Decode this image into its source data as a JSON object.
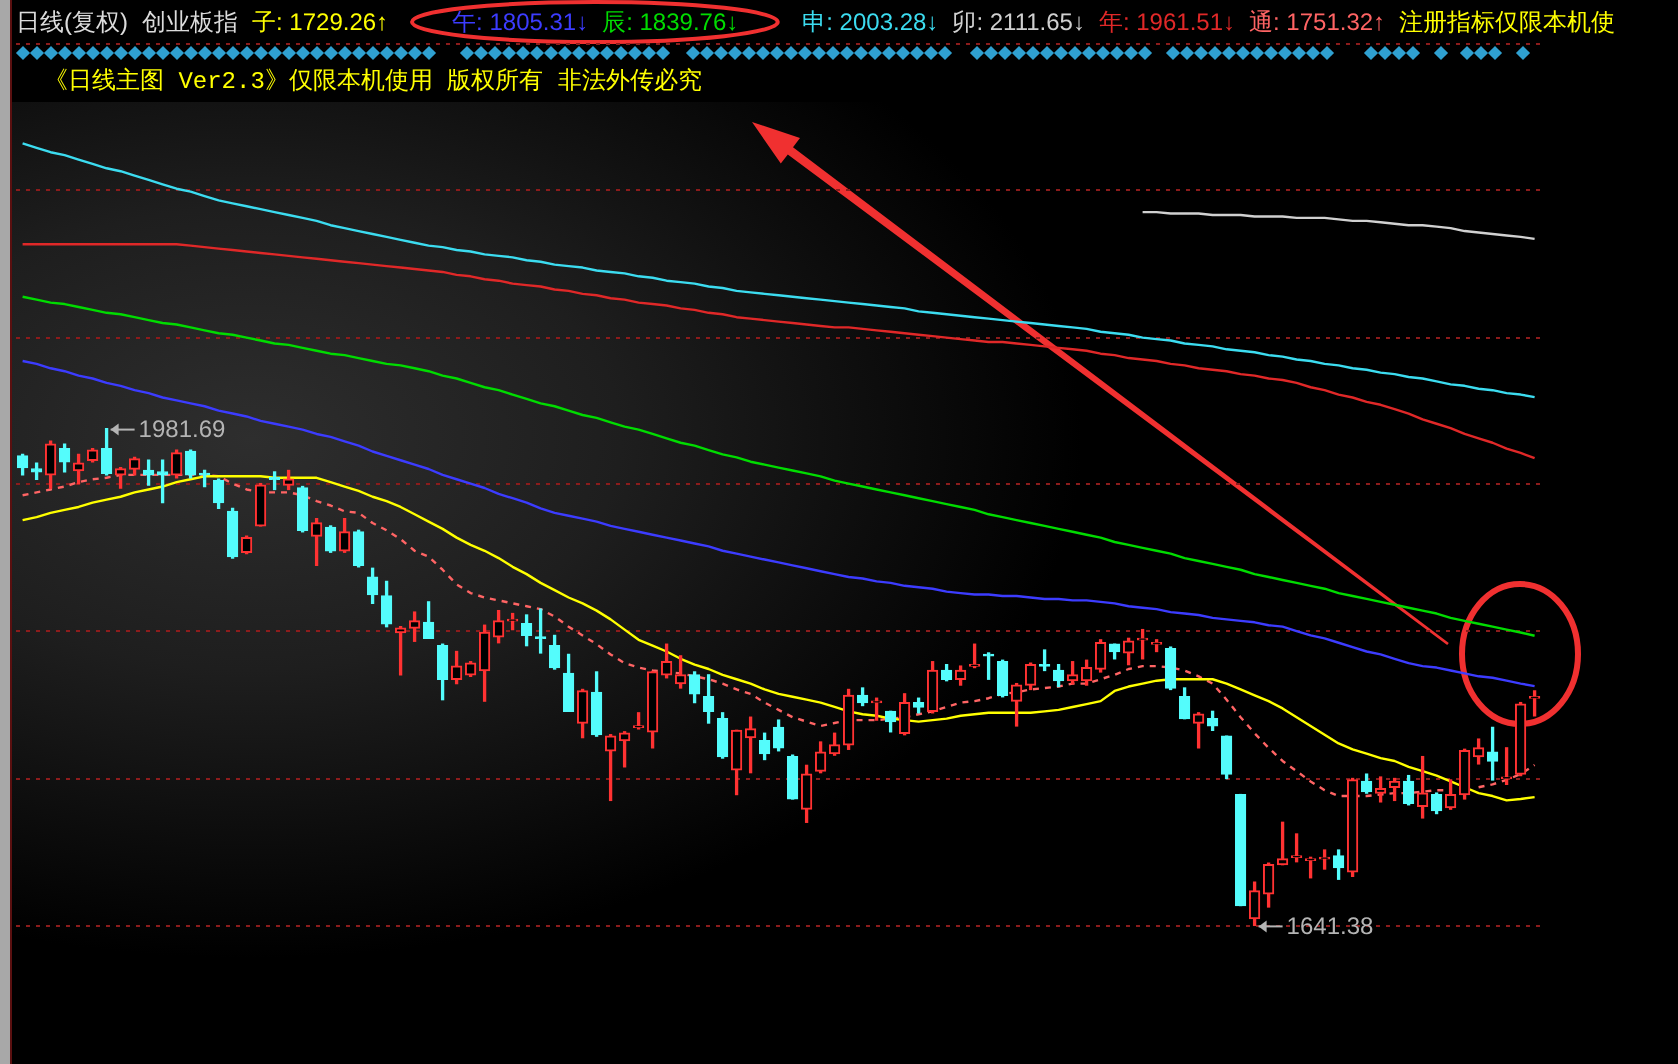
{
  "chart_data": {
    "type": "candlestick",
    "title": "日线(复权)",
    "subtitle": "创业板指",
    "categories": [
      null,
      null,
      null,
      null,
      null,
      null,
      null,
      null,
      null,
      null,
      null,
      null,
      null,
      null,
      null,
      null,
      null,
      null,
      null,
      null,
      null,
      null,
      null,
      null,
      null,
      null,
      null,
      null,
      null,
      null,
      null,
      null,
      null,
      null,
      null,
      null,
      null,
      null,
      null,
      null,
      null,
      null,
      null,
      null,
      null,
      null,
      null,
      null,
      null,
      null,
      null,
      null,
      null,
      null,
      null,
      null,
      null,
      null,
      null,
      null,
      null,
      null,
      null,
      null,
      null,
      null,
      null,
      null,
      null,
      null,
      null,
      null,
      null,
      null,
      null,
      null,
      null,
      null,
      null,
      null,
      null,
      null,
      null,
      null,
      null,
      null,
      null,
      null,
      null,
      null,
      null,
      null,
      null,
      null,
      null,
      null,
      null,
      null,
      null,
      null,
      null,
      null,
      null,
      null,
      null,
      null,
      null,
      null,
      null
    ],
    "ohlc": [
      [
        1963,
        1964,
        1950,
        1955
      ],
      [
        1954,
        1958,
        1947,
        1952
      ],
      [
        1950,
        1973,
        1941,
        1971
      ],
      [
        1968,
        1971,
        1952,
        1959
      ],
      [
        1953,
        1964,
        1944,
        1958
      ],
      [
        1960,
        1968,
        1959,
        1967
      ],
      [
        1968,
        1981.69,
        1950,
        1951
      ],
      [
        1950,
        1955,
        1941,
        1954
      ],
      [
        1954,
        1962,
        1950,
        1961
      ],
      [
        1953,
        1960,
        1943,
        1950
      ],
      [
        1952,
        1960,
        1931,
        1950
      ],
      [
        1950,
        1967,
        1948,
        1965
      ],
      [
        1966,
        1967,
        1948,
        1950
      ],
      [
        1951,
        1953,
        1942,
        1950
      ],
      [
        1946,
        1947,
        1927,
        1931
      ],
      [
        1925,
        1927,
        1893,
        1894
      ],
      [
        1897,
        1908,
        1896,
        1907
      ],
      [
        1915,
        1944,
        1915,
        1943
      ],
      [
        1948,
        1952,
        1940,
        1947
      ],
      [
        1943,
        1953,
        1940,
        1947
      ],
      [
        1941,
        1942,
        1911,
        1912
      ],
      [
        1908,
        1920,
        1888,
        1917
      ],
      [
        1914,
        1915,
        1897,
        1898
      ],
      [
        1898,
        1920,
        1897,
        1911
      ],
      [
        1911,
        1912,
        1887,
        1888
      ],
      [
        1880,
        1886,
        1862,
        1868
      ],
      [
        1867,
        1877,
        1846,
        1848
      ],
      [
        1842,
        1846,
        1813,
        1845
      ],
      [
        1845,
        1856,
        1836,
        1850
      ],
      [
        1849,
        1863,
        1838,
        1838
      ],
      [
        1833,
        1834,
        1796,
        1810
      ],
      [
        1810,
        1829,
        1807,
        1819
      ],
      [
        1813,
        1822,
        1812,
        1821
      ],
      [
        1816,
        1847,
        1795,
        1842
      ],
      [
        1839,
        1857,
        1835,
        1850
      ],
      [
        1850,
        1855,
        1844,
        1851
      ],
      [
        1848,
        1854,
        1833,
        1840
      ],
      [
        1839,
        1858,
        1828,
        1838
      ],
      [
        1833,
        1840,
        1817,
        1818
      ],
      [
        1814,
        1827,
        1788,
        1788
      ],
      [
        1780,
        1803,
        1770,
        1802
      ],
      [
        1801,
        1815,
        1771,
        1772
      ],
      [
        1761,
        1772,
        1727,
        1771
      ],
      [
        1768,
        1774,
        1750,
        1773
      ],
      [
        1777,
        1787,
        1776,
        1778
      ],
      [
        1774,
        1815,
        1763,
        1815
      ],
      [
        1813,
        1834,
        1811,
        1822
      ],
      [
        1807,
        1826,
        1804,
        1813
      ],
      [
        1813,
        1815,
        1794,
        1800
      ],
      [
        1798,
        1813,
        1780,
        1788
      ],
      [
        1783,
        1787,
        1756,
        1757
      ],
      [
        1748,
        1775,
        1731,
        1775
      ],
      [
        1770,
        1784,
        1746,
        1776
      ],
      [
        1768,
        1773,
        1755,
        1759
      ],
      [
        1777,
        1782,
        1761,
        1763
      ],
      [
        1757,
        1758,
        1728,
        1728
      ],
      [
        1721,
        1751,
        1712,
        1745
      ],
      [
        1747,
        1767,
        1746,
        1760
      ],
      [
        1759,
        1773,
        1758,
        1765
      ],
      [
        1765,
        1803,
        1762,
        1799
      ],
      [
        1799,
        1804,
        1792,
        1794
      ],
      [
        1794,
        1797,
        1782,
        1795
      ],
      [
        1788,
        1788,
        1774,
        1781
      ],
      [
        1773,
        1800,
        1772,
        1794
      ],
      [
        1794,
        1797,
        1787,
        1791
      ],
      [
        1788,
        1822,
        1787,
        1816
      ],
      [
        1816,
        1820,
        1809,
        1810
      ],
      [
        1810,
        1819,
        1806,
        1816
      ],
      [
        1819,
        1834,
        1818,
        1820
      ],
      [
        1827,
        1828,
        1810,
        1826
      ],
      [
        1822,
        1823,
        1798,
        1799
      ],
      [
        1795,
        1807,
        1778,
        1806
      ],
      [
        1806,
        1821,
        1803,
        1820
      ],
      [
        1820,
        1830,
        1816,
        1819
      ],
      [
        1816,
        1820,
        1805,
        1809
      ],
      [
        1809,
        1822,
        1807,
        1813
      ],
      [
        1809,
        1823,
        1806,
        1818
      ],
      [
        1817,
        1837,
        1815,
        1835
      ],
      [
        1834,
        1834,
        1824,
        1829
      ],
      [
        1828,
        1838,
        1820,
        1836
      ],
      [
        1837,
        1844,
        1824,
        1838
      ],
      [
        1834,
        1837,
        1829,
        1835
      ],
      [
        1831,
        1832,
        1803,
        1804
      ],
      [
        1798,
        1804,
        1783,
        1783
      ],
      [
        1780,
        1787,
        1763,
        1786
      ],
      [
        1783,
        1788,
        1775,
        1778
      ],
      [
        1771,
        1771,
        1742,
        1745
      ],
      [
        1731,
        1731,
        1655,
        1655
      ],
      [
        1646,
        1671,
        1641.38,
        1665
      ],
      [
        1663,
        1684,
        1654,
        1683
      ],
      [
        1683,
        1712,
        1683,
        1687
      ],
      [
        1688,
        1704,
        1685,
        1689
      ],
      [
        1686,
        1688,
        1674,
        1687
      ],
      [
        1687,
        1693,
        1680,
        1688
      ],
      [
        1689,
        1693,
        1673,
        1681
      ],
      [
        1678,
        1742,
        1675,
        1741
      ],
      [
        1740,
        1745,
        1732,
        1733
      ],
      [
        1732,
        1743,
        1726,
        1735
      ],
      [
        1736,
        1742,
        1727,
        1740
      ],
      [
        1740,
        1744,
        1724,
        1725
      ],
      [
        1723,
        1757,
        1715,
        1732
      ],
      [
        1731,
        1732,
        1718,
        1720
      ],
      [
        1722,
        1741,
        1721,
        1731
      ],
      [
        1731,
        1762,
        1728,
        1761
      ],
      [
        1757,
        1769,
        1752,
        1763
      ],
      [
        1760,
        1777,
        1741,
        1754
      ],
      [
        1742,
        1763,
        1738,
        1743
      ],
      [
        1745,
        1794,
        1744,
        1793
      ],
      [
        1797,
        1802,
        1785,
        1798
      ]
    ],
    "colors": [
      "#54fcfc",
      "#54fcfc",
      "#ff3232",
      "#54fcfc",
      "#ff3232",
      "#ff3232",
      "#54fcfc",
      "#ff3232",
      "#ff3232",
      "#54fcfc",
      "#54fcfc",
      "#ff3232",
      "#54fcfc",
      "#54fcfc",
      "#54fcfc",
      "#54fcfc",
      "#ff3232",
      "#ff3232",
      "#54fcfc",
      "#ff3232",
      "#54fcfc",
      "#ff3232",
      "#54fcfc",
      "#ff3232",
      "#54fcfc",
      "#54fcfc",
      "#54fcfc",
      "#ff3232",
      "#ff3232",
      "#54fcfc",
      "#54fcfc",
      "#ff3232",
      "#ff3232",
      "#ff3232",
      "#ff3232",
      "#ff3232",
      "#54fcfc",
      "#54fcfc",
      "#54fcfc",
      "#54fcfc",
      "#ff3232",
      "#54fcfc",
      "#ff3232",
      "#ff3232",
      "#ff3232",
      "#ff3232",
      "#ff3232",
      "#ff3232",
      "#54fcfc",
      "#54fcfc",
      "#54fcfc",
      "#ff3232",
      "#ff3232",
      "#54fcfc",
      "#54fcfc",
      "#54fcfc",
      "#ff3232",
      "#ff3232",
      "#ff3232",
      "#ff3232",
      "#54fcfc",
      "#ff3232",
      "#54fcfc",
      "#ff3232",
      "#54fcfc",
      "#ff3232",
      "#54fcfc",
      "#ff3232",
      "#ff3232",
      "#54fcfc",
      "#54fcfc",
      "#ff3232",
      "#ff3232",
      "#54fcfc",
      "#54fcfc",
      "#ff3232",
      "#ff3232",
      "#ff3232",
      "#54fcfc",
      "#ff3232",
      "#ff3232",
      "#ff3232",
      "#54fcfc",
      "#54fcfc",
      "#ff3232",
      "#54fcfc",
      "#54fcfc",
      "#54fcfc",
      "#ff3232",
      "#ff3232",
      "#ff3232",
      "#ff3232",
      "#ff3232",
      "#ff3232",
      "#54fcfc",
      "#ff3232",
      "#54fcfc",
      "#ff3232",
      "#ff3232",
      "#54fcfc",
      "#ff3232",
      "#54fcfc",
      "#ff3232",
      "#ff3232",
      "#ff3232",
      "#54fcfc",
      "#ff3232",
      "#ff3232",
      "#ff3232"
    ],
    "series": [
      {
        "type": "line",
        "name": "子: 1729.26↑",
        "color": "#ffff00",
        "values": [
          1919,
          1921,
          1924,
          1926,
          1928,
          1931,
          1933,
          1935,
          1938,
          1940,
          1942,
          1945,
          1947,
          1949,
          1949,
          1949,
          1949,
          1949,
          1948,
          1948,
          1948,
          1948,
          1945,
          1942,
          1939,
          1935,
          1932,
          1928,
          1923,
          1918,
          1913,
          1907,
          1902,
          1898,
          1893,
          1887,
          1882,
          1876,
          1871,
          1866,
          1862,
          1857,
          1851,
          1844,
          1837,
          1833,
          1829,
          1824,
          1820,
          1817,
          1813,
          1810,
          1807,
          1803,
          1800,
          1798,
          1796,
          1794,
          1791,
          1788,
          1786,
          1785,
          1783,
          1782,
          1781,
          1782,
          1783,
          1785,
          1786,
          1787,
          1787,
          1787,
          1787,
          1788,
          1789,
          1791,
          1793,
          1795,
          1802,
          1805,
          1807,
          1809,
          1810,
          1810,
          1810,
          1810,
          1807,
          1803,
          1799,
          1795,
          1790,
          1784,
          1778,
          1772,
          1766,
          1762,
          1759,
          1756,
          1754,
          1750,
          1747,
          1744,
          1740,
          1736,
          1732,
          1730,
          1727,
          1728,
          1729.26
        ]
      },
      {
        "type": "line",
        "name": "午: 1805.31↓",
        "color": "#3c3cff",
        "values": [
          2028,
          2026,
          2023,
          2021,
          2018,
          2016,
          2013,
          2011,
          2008,
          2006,
          2003,
          2001,
          1999,
          1997,
          1994,
          1992,
          1990,
          1987,
          1985,
          1983,
          1981,
          1978,
          1976,
          1973,
          1970,
          1966,
          1963,
          1960,
          1957,
          1954,
          1950,
          1947,
          1944,
          1941,
          1937,
          1934,
          1931,
          1927,
          1924,
          1922,
          1920,
          1918,
          1915,
          1913,
          1911,
          1909,
          1907,
          1905,
          1903,
          1901,
          1898,
          1896,
          1894,
          1892,
          1890,
          1888,
          1886,
          1884,
          1882,
          1880,
          1879,
          1877,
          1876,
          1874,
          1873,
          1872,
          1870,
          1869,
          1868,
          1868,
          1867,
          1867,
          1866,
          1865,
          1865,
          1864,
          1864,
          1863,
          1862,
          1860,
          1859,
          1858,
          1856,
          1855,
          1854,
          1852,
          1851,
          1850,
          1849,
          1847,
          1846,
          1843,
          1840,
          1838,
          1835,
          1832,
          1829,
          1827,
          1824,
          1821,
          1819,
          1818,
          1816,
          1814,
          1812,
          1811,
          1809,
          1807,
          1805.31
        ]
      },
      {
        "type": "line",
        "name": "辰: 1839.76↓",
        "color": "#00dc00",
        "values": [
          2072,
          2070,
          2068,
          2067,
          2065,
          2063,
          2061,
          2060,
          2058,
          2056,
          2054,
          2053,
          2051,
          2049,
          2047,
          2046,
          2044,
          2042,
          2040,
          2039,
          2037,
          2035,
          2033,
          2032,
          2030,
          2028,
          2026,
          2025,
          2023,
          2021,
          2018,
          2016,
          2013,
          2010,
          2008,
          2005,
          2002,
          1999,
          1997,
          1994,
          1991,
          1989,
          1986,
          1983,
          1981,
          1978,
          1975,
          1972,
          1970,
          1967,
          1964,
          1962,
          1959,
          1957,
          1955,
          1953,
          1951,
          1949,
          1946,
          1944,
          1942,
          1940,
          1938,
          1936,
          1934,
          1932,
          1930,
          1928,
          1926,
          1923,
          1921,
          1919,
          1917,
          1915,
          1913,
          1911,
          1909,
          1907,
          1904,
          1902,
          1900,
          1898,
          1896,
          1893,
          1891,
          1889,
          1887,
          1885,
          1882,
          1880,
          1878,
          1876,
          1874,
          1872,
          1869,
          1867,
          1865,
          1863,
          1861,
          1859,
          1857,
          1855,
          1852,
          1850,
          1848,
          1846,
          1844,
          1842,
          1839.76
        ]
      },
      {
        "type": "line",
        "name": "申: 2003.28↓",
        "color": "#3cdcf0",
        "values": [
          2177,
          2174,
          2171,
          2169,
          2166,
          2163,
          2160,
          2158,
          2155,
          2152,
          2149,
          2146,
          2144,
          2141,
          2138,
          2136,
          2134,
          2132,
          2130,
          2128,
          2126,
          2124,
          2121,
          2119,
          2117,
          2115,
          2113,
          2111,
          2109,
          2107,
          2106,
          2104,
          2103,
          2101,
          2100,
          2099,
          2097,
          2096,
          2094,
          2093,
          2092,
          2090,
          2089,
          2088,
          2086,
          2085,
          2083,
          2082,
          2081,
          2079,
          2078,
          2076,
          2075,
          2074,
          2073,
          2072,
          2071,
          2070,
          2069,
          2068,
          2067,
          2066,
          2065,
          2064,
          2062,
          2061,
          2060,
          2059,
          2058,
          2057,
          2056,
          2055,
          2054,
          2053,
          2052,
          2051,
          2050,
          2048,
          2047,
          2046,
          2044,
          2043,
          2042,
          2040,
          2039,
          2038,
          2036,
          2035,
          2034,
          2032,
          2031,
          2029,
          2028,
          2026,
          2025,
          2023,
          2022,
          2020,
          2019,
          2017,
          2016,
          2014,
          2012,
          2011,
          2009,
          2008,
          2006,
          2005,
          2003.28
        ]
      },
      {
        "type": "line",
        "name": "卯: 2111.65↓",
        "color": "#d0d0d0",
        "values": [
          null,
          null,
          null,
          null,
          null,
          null,
          null,
          null,
          null,
          null,
          null,
          null,
          null,
          null,
          null,
          null,
          null,
          null,
          null,
          null,
          null,
          null,
          null,
          null,
          null,
          null,
          null,
          null,
          null,
          null,
          null,
          null,
          null,
          null,
          null,
          null,
          null,
          null,
          null,
          null,
          null,
          null,
          null,
          null,
          null,
          null,
          null,
          null,
          null,
          null,
          null,
          null,
          null,
          null,
          null,
          null,
          null,
          null,
          null,
          null,
          null,
          null,
          null,
          null,
          null,
          null,
          null,
          null,
          null,
          null,
          null,
          null,
          null,
          null,
          null,
          null,
          null,
          null,
          null,
          null,
          2130,
          2130,
          2129,
          2129,
          2129,
          2128,
          2128,
          2128,
          2127,
          2127,
          2127,
          2126,
          2126,
          2126,
          2125,
          2124,
          2124,
          2123,
          2122,
          2121,
          2121,
          2120,
          2119,
          2117,
          2116,
          2115,
          2114,
          2113,
          2111.65
        ]
      },
      {
        "type": "line",
        "name": "年: 1961.51↓",
        "color": "#e02828",
        "values": [
          2108,
          2108,
          2108,
          2108,
          2108,
          2108,
          2108,
          2108,
          2108,
          2108,
          2108,
          2108,
          2107,
          2106,
          2105,
          2104,
          2103,
          2102,
          2101,
          2100,
          2099,
          2098,
          2097,
          2096,
          2095,
          2094,
          2093,
          2092,
          2091,
          2090,
          2089,
          2087,
          2086,
          2084,
          2083,
          2081,
          2080,
          2079,
          2077,
          2076,
          2074,
          2073,
          2071,
          2070,
          2068,
          2067,
          2066,
          2064,
          2063,
          2061,
          2060,
          2058,
          2057,
          2056,
          2055,
          2054,
          2053,
          2052,
          2051,
          2051,
          2050,
          2049,
          2048,
          2047,
          2046,
          2045,
          2044,
          2043,
          2042,
          2041,
          2041,
          2040,
          2039,
          2038,
          2037,
          2036,
          2035,
          2033,
          2032,
          2030,
          2029,
          2028,
          2026,
          2025,
          2023,
          2022,
          2021,
          2019,
          2018,
          2016,
          2015,
          2013,
          2010,
          2008,
          2005,
          2003,
          2000,
          1998,
          1995,
          1992,
          1988,
          1985,
          1982,
          1978,
          1975,
          1972,
          1968,
          1965,
          1961.51
        ]
      },
      {
        "type": "line",
        "name": "通: 1751.32↑",
        "color": "#ff6464",
        "line_style": "dashed",
        "values": [
          1936,
          1938,
          1940,
          1942,
          1945,
          1947,
          1948,
          1950,
          1950,
          1950,
          1950,
          1950,
          1950,
          1950,
          1949,
          1944,
          1940,
          1938,
          1938,
          1938,
          1936,
          1932,
          1929,
          1925,
          1924,
          1917,
          1912,
          1906,
          1898,
          1894,
          1885,
          1875,
          1869,
          1866,
          1864,
          1862,
          1860,
          1858,
          1853,
          1846,
          1840,
          1834,
          1827,
          1821,
          1818,
          1816,
          1815,
          1814,
          1812,
          1810,
          1807,
          1803,
          1800,
          1794,
          1789,
          1784,
          1781,
          1778,
          1780,
          1782,
          1782,
          1782,
          1783,
          1784,
          1786,
          1788,
          1791,
          1794,
          1795,
          1797,
          1800,
          1801,
          1803,
          1804,
          1805,
          1807,
          1807,
          1810,
          1813,
          1817,
          1819,
          1819,
          1818,
          1816,
          1812,
          1807,
          1796,
          1784,
          1773,
          1763,
          1754,
          1747,
          1740,
          1734,
          1730,
          1730,
          1730,
          1731,
          1732,
          1732,
          1733,
          1734,
          1734,
          null,
          1736,
          1738,
          1741,
          1745,
          1751.32
        ]
      }
    ],
    "ylim": [
      1550,
      2275
    ],
    "yticks": [
      {
        "value": 1641,
        "label": null
      },
      {
        "value": 1742,
        "label": null
      },
      {
        "value": 1843,
        "label": null
      },
      {
        "value": 1944,
        "label": null
      },
      {
        "value": 2044,
        "label": null
      },
      {
        "value": 2145,
        "label": null
      },
      {
        "value": 2245,
        "label": null
      }
    ],
    "grid": "y",
    "tick_labels": false,
    "legend": "top",
    "annotations": [
      "1981.69",
      "1641.38",
      "《日线主图 Ver2.3》仅限本机使用 版权所有 非法外传必究",
      "注册指标仅限本机使"
    ]
  }
}
